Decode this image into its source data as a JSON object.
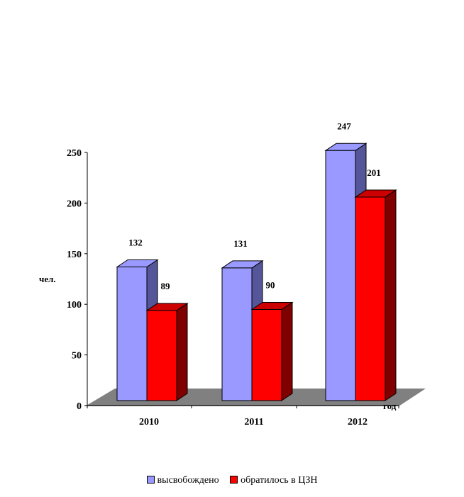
{
  "chart_data": {
    "type": "bar",
    "ylabel": "чел.",
    "xlabel": "год",
    "ylim": [
      0,
      250
    ],
    "yticks": [
      0,
      50,
      100,
      150,
      200,
      250
    ],
    "categories": [
      "2010",
      "2011",
      "2012"
    ],
    "series": [
      {
        "name": "высвобождено",
        "values": [
          132,
          131,
          247
        ],
        "color": "#9999ff",
        "side": "#555599",
        "top": "#9999ff"
      },
      {
        "name": "обратилось в ЦЗН",
        "values": [
          89,
          90,
          201
        ],
        "color": "#ff0000",
        "side": "#800000",
        "top": "#cc0000"
      }
    ],
    "legend_position": "bottom",
    "floor_color": "#808080"
  }
}
